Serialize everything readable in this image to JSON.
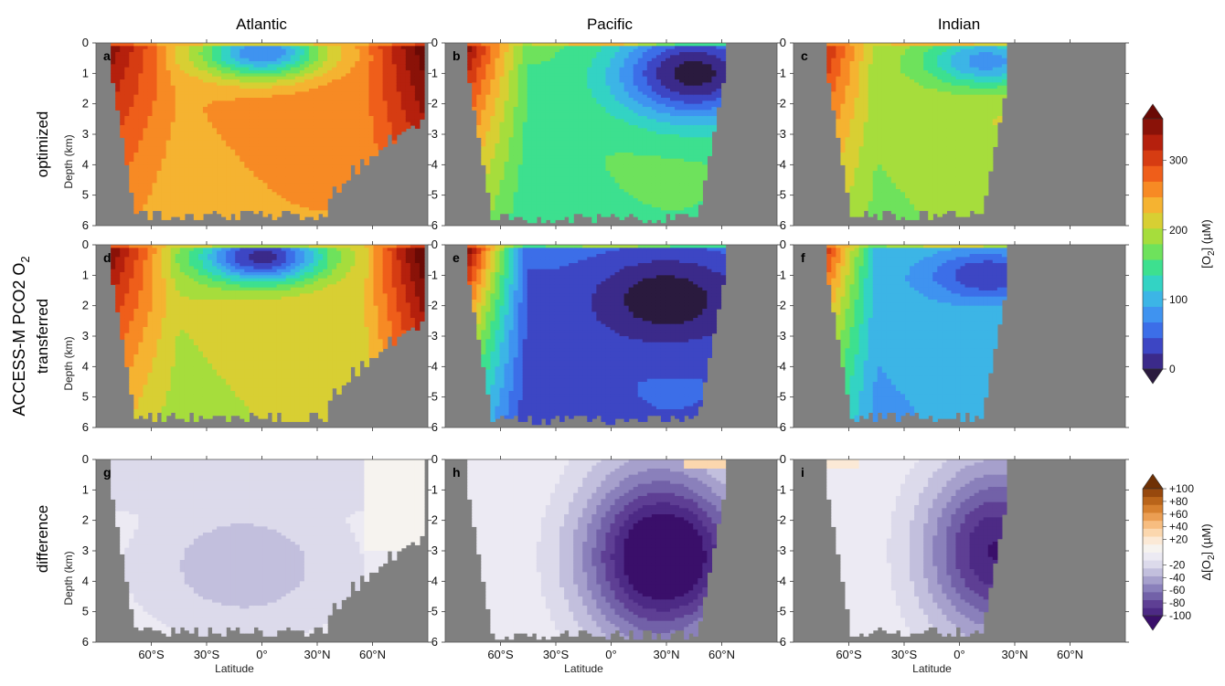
{
  "chart_data": {
    "type": "heatmap",
    "columns": [
      "Atlantic",
      "Pacific",
      "Indian"
    ],
    "rows": [
      "optimized",
      "transferred",
      "difference"
    ],
    "overall_label": "ACCESS-M PCO2 O",
    "overall_label_sub": "2",
    "panel_letters": [
      "a",
      "b",
      "c",
      "d",
      "e",
      "f",
      "g",
      "h",
      "i"
    ],
    "ylabel": "Depth (km)",
    "xlabel": "Latitude",
    "y_ticks": [
      "0",
      "1",
      "2",
      "3",
      "4",
      "5",
      "6"
    ],
    "x_ticks": [
      "60°S",
      "30°S",
      "0°",
      "30°N",
      "60°N"
    ],
    "x_tick_values": [
      -60,
      -30,
      0,
      30,
      60
    ],
    "xlim": [
      -90,
      90
    ],
    "ylim": [
      6,
      0
    ],
    "colorbar_o2": {
      "label": "[O",
      "label_sub": "2",
      "label_end": "] (µM)",
      "ticks": [
        "0",
        "100",
        "200",
        "300"
      ],
      "range": [
        0,
        360
      ],
      "colors": [
        "#2a1a3e",
        "#3b2a8a",
        "#3d46c4",
        "#3c6ee8",
        "#3f93f0",
        "#3cb5e6",
        "#33d3c4",
        "#3de08f",
        "#6ee25c",
        "#a6dd3c",
        "#d8cf33",
        "#f5b331",
        "#f78a24",
        "#ef5e1a",
        "#d63c12",
        "#b5200d",
        "#8a1208",
        "#6a0a05"
      ]
    },
    "colorbar_diff": {
      "label": "Δ[O",
      "label_sub": "2",
      "label_end": "] (µM)",
      "ticks": [
        "+100",
        "+80",
        "+60",
        "+40",
        "+20",
        "-20",
        "-40",
        "-60",
        "-80",
        "-100"
      ],
      "range": [
        -100,
        100
      ],
      "colors": [
        "#3a0f6a",
        "#4d2a85",
        "#5e3f94",
        "#7261a8",
        "#8a80bb",
        "#a6a0cc",
        "#c2bfdd",
        "#dcdaeb",
        "#eceaf3",
        "#f6f3ef",
        "#fbe9d6",
        "#fbd7ae",
        "#f7bd80",
        "#eb9e53",
        "#d6802f",
        "#b9641a",
        "#97480d",
        "#6f3105"
      ]
    },
    "panels": [
      {
        "letter": "a",
        "row": 0,
        "col": 0,
        "basin": "Atlantic",
        "kind": "o2",
        "lat_south": -82,
        "lat_north": 86,
        "surface_o2": 300,
        "deep_o2": 250,
        "omz_lat": 0,
        "omz_depth": 0.3,
        "omz_min": 80,
        "bottom_depth": 5.8
      },
      {
        "letter": "b",
        "row": 0,
        "col": 1,
        "basin": "Pacific",
        "kind": "o2",
        "lat_south": -78,
        "lat_north": 60,
        "surface_o2": 300,
        "deep_o2": 170,
        "omz_lat": 45,
        "omz_depth": 1.0,
        "omz_min": 10,
        "bottom_depth": 5.9
      },
      {
        "letter": "c",
        "row": 0,
        "col": 2,
        "basin": "Indian",
        "kind": "o2",
        "lat_south": -72,
        "lat_north": 25,
        "surface_o2": 300,
        "deep_o2": 200,
        "omz_lat": 15,
        "omz_depth": 0.6,
        "omz_min": 90,
        "bottom_depth": 5.8
      },
      {
        "letter": "d",
        "row": 1,
        "col": 0,
        "basin": "Atlantic",
        "kind": "o2",
        "lat_south": -82,
        "lat_north": 86,
        "surface_o2": 300,
        "deep_o2": 215,
        "omz_lat": 0,
        "omz_depth": 0.4,
        "omz_min": 30,
        "bottom_depth": 5.8
      },
      {
        "letter": "e",
        "row": 1,
        "col": 1,
        "basin": "Pacific",
        "kind": "o2",
        "lat_south": -78,
        "lat_north": 60,
        "surface_o2": 300,
        "deep_o2": 70,
        "omz_lat": 30,
        "omz_depth": 1.8,
        "omz_min": 5,
        "bottom_depth": 5.9
      },
      {
        "letter": "f",
        "row": 1,
        "col": 2,
        "basin": "Indian",
        "kind": "o2",
        "lat_south": -72,
        "lat_north": 25,
        "surface_o2": 300,
        "deep_o2": 120,
        "omz_lat": 15,
        "omz_depth": 1.0,
        "omz_min": 40,
        "bottom_depth": 5.8
      },
      {
        "letter": "g",
        "row": 2,
        "col": 0,
        "basin": "Atlantic",
        "kind": "diff",
        "lat_south": -82,
        "lat_north": 86,
        "min_diff": -45,
        "bottom_depth": 5.8
      },
      {
        "letter": "h",
        "row": 2,
        "col": 1,
        "basin": "Pacific",
        "kind": "diff",
        "lat_south": -78,
        "lat_north": 60,
        "min_diff": -100,
        "bottom_depth": 5.9
      },
      {
        "letter": "i",
        "row": 2,
        "col": 2,
        "basin": "Indian",
        "kind": "diff",
        "lat_south": -72,
        "lat_north": 25,
        "min_diff": -90,
        "bottom_depth": 5.8
      }
    ]
  }
}
